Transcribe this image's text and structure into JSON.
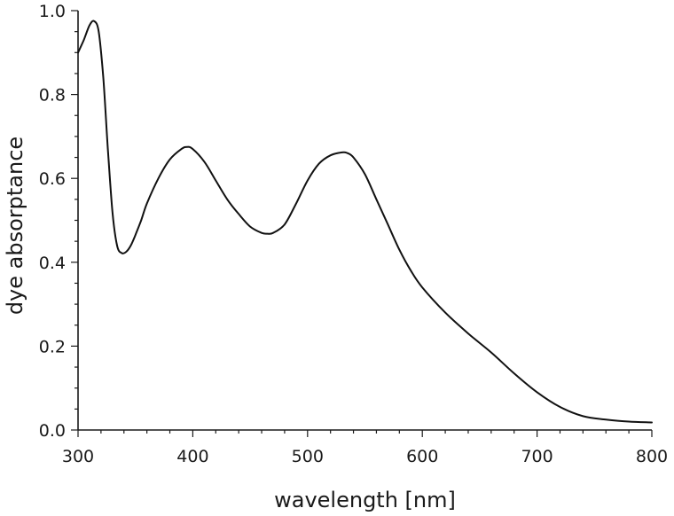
{
  "chart_data": {
    "type": "line",
    "title": "",
    "xlabel": "wavelength [nm]",
    "ylabel": "dye absorptance",
    "xlim": [
      300,
      800
    ],
    "ylim": [
      0.0,
      1.0
    ],
    "grid": false,
    "x_ticks": [
      300,
      400,
      500,
      600,
      700,
      800
    ],
    "x_tick_labels": [
      "300",
      "400",
      "500",
      "600",
      "700",
      "800"
    ],
    "y_ticks": [
      0.0,
      0.2,
      0.4,
      0.6,
      0.8,
      1.0
    ],
    "y_tick_labels": [
      "0.0",
      "0.2",
      "0.4",
      "0.6",
      "0.8",
      "1.0"
    ],
    "series": [
      {
        "color": "#111111",
        "x": [
          300,
          305,
          310,
          314,
          318,
          322,
          326,
          330,
          334,
          338,
          342,
          346,
          350,
          355,
          360,
          370,
          380,
          390,
          395,
          400,
          410,
          420,
          430,
          440,
          450,
          460,
          465,
          470,
          480,
          490,
          500,
          510,
          520,
          530,
          535,
          540,
          550,
          560,
          570,
          580,
          590,
          600,
          620,
          640,
          660,
          680,
          700,
          720,
          740,
          760,
          780,
          800
        ],
        "y": [
          0.9,
          0.93,
          0.965,
          0.975,
          0.95,
          0.84,
          0.67,
          0.52,
          0.44,
          0.422,
          0.425,
          0.44,
          0.465,
          0.5,
          0.54,
          0.6,
          0.645,
          0.67,
          0.675,
          0.67,
          0.64,
          0.595,
          0.55,
          0.515,
          0.485,
          0.47,
          0.468,
          0.47,
          0.49,
          0.54,
          0.595,
          0.635,
          0.655,
          0.662,
          0.66,
          0.65,
          0.61,
          0.55,
          0.49,
          0.43,
          0.38,
          0.34,
          0.28,
          0.23,
          0.185,
          0.135,
          0.09,
          0.055,
          0.033,
          0.025,
          0.02,
          0.018
        ]
      }
    ]
  }
}
